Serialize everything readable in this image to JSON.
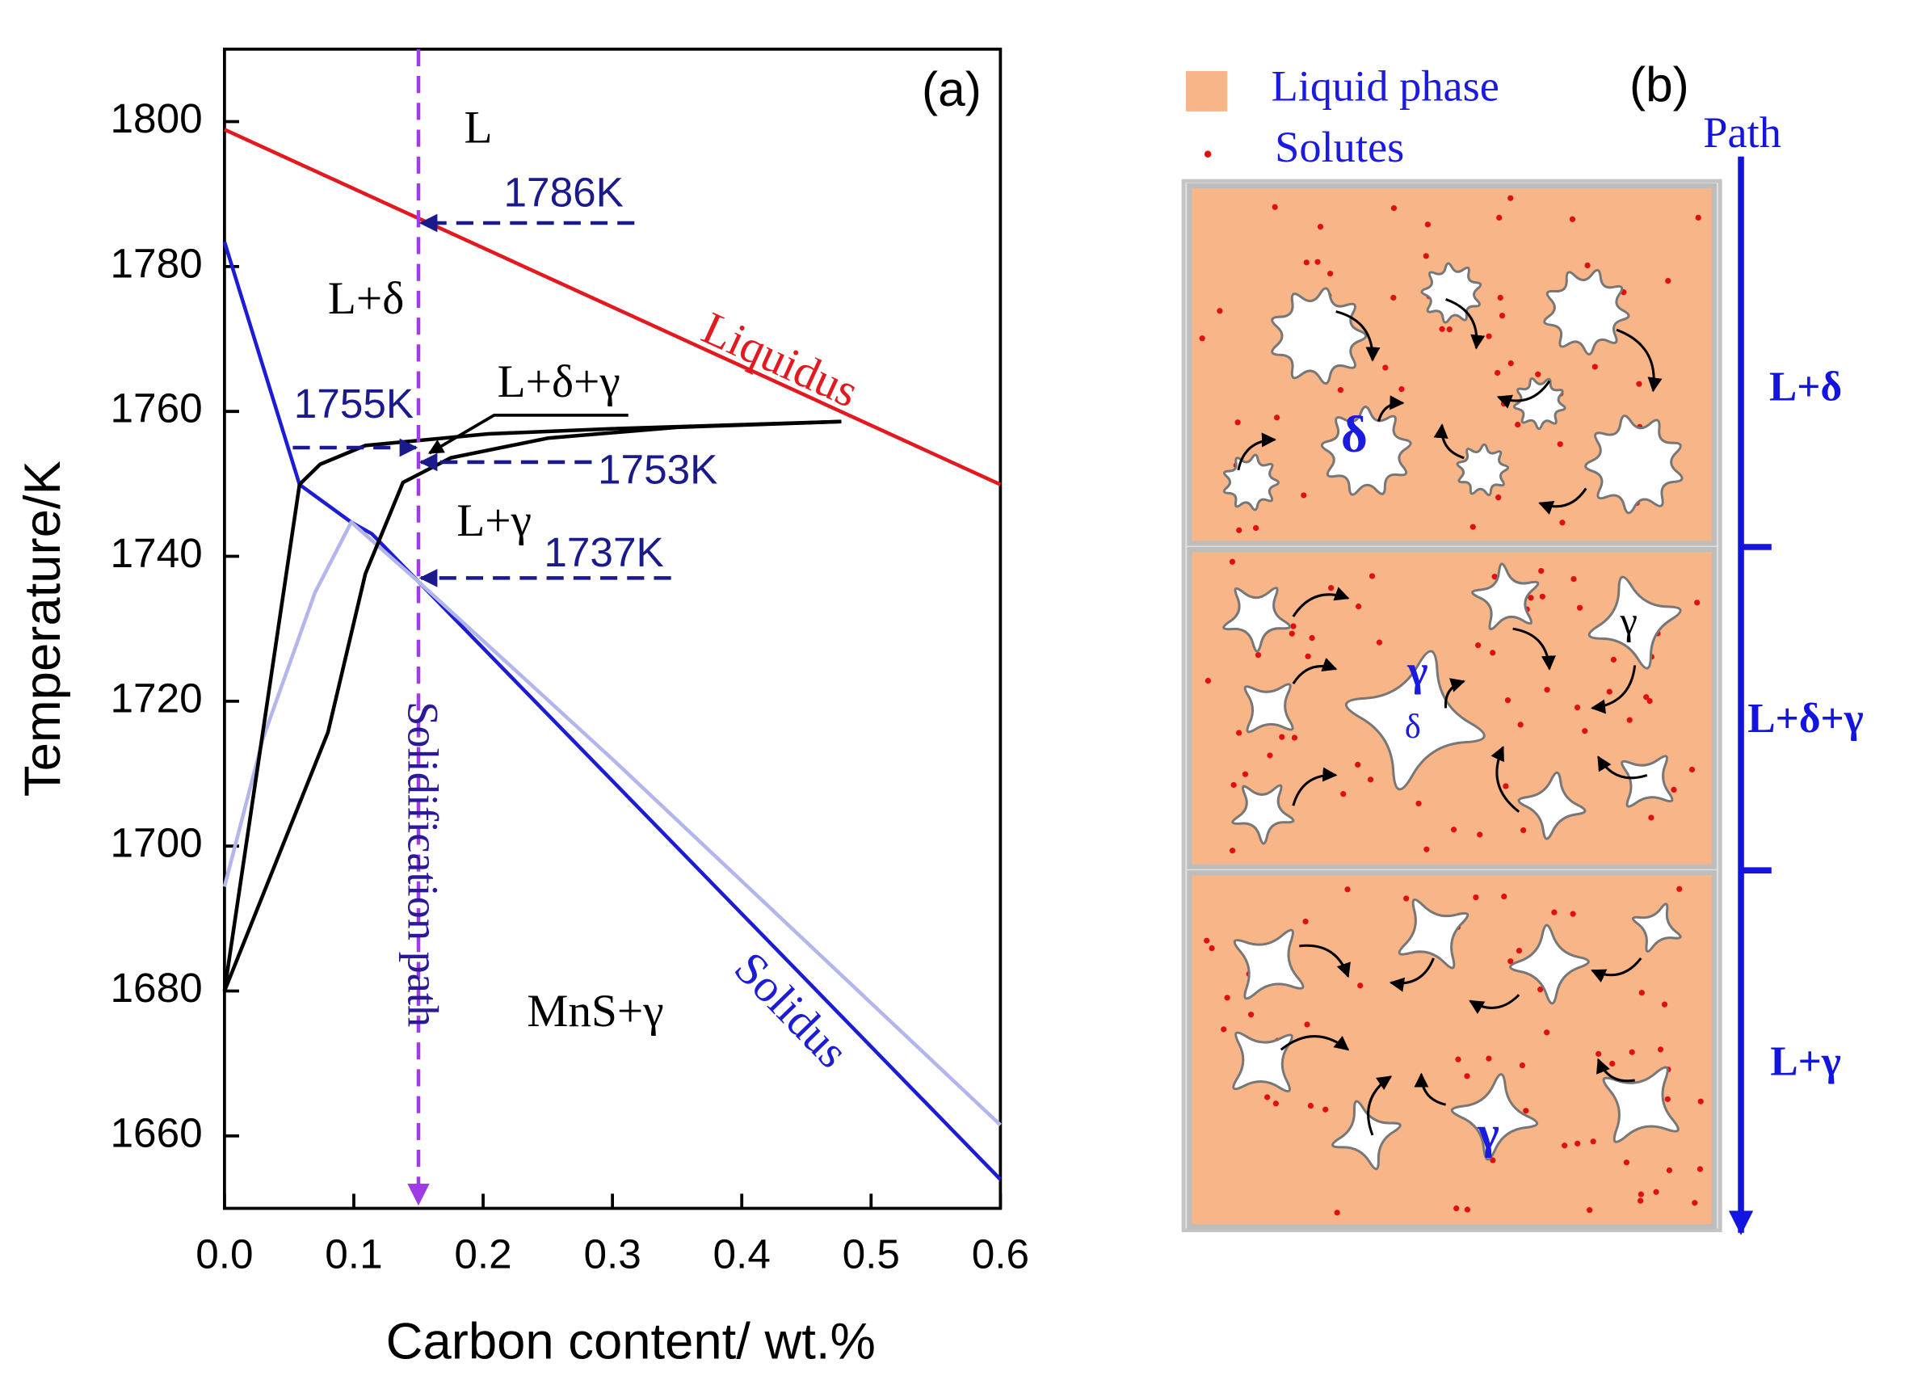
{
  "chart_data": {
    "type": "line",
    "panel_label": "(a)",
    "xlabel": "Carbon content/ wt.%",
    "ylabel": "Temperature/K",
    "xlim": [
      0,
      0.6
    ],
    "ylim": [
      1650,
      1810
    ],
    "xticks": [
      {
        "value": 0,
        "label": "0.0"
      },
      0.1,
      0.2,
      0.3,
      0.4,
      0.5,
      0.6
    ],
    "yticks": [
      1660,
      1680,
      1700,
      1720,
      1740,
      1760,
      1780,
      1800
    ],
    "series": [
      {
        "name": "Liquidus",
        "color": "#e3191f",
        "x": [
          0,
          0.6
        ],
        "values": [
          1798.9,
          1749.9
        ]
      },
      {
        "name": "Solidus",
        "color": "#1c1cd6",
        "x": [
          0,
          0.058,
          0.098,
          0.114,
          0.6
        ],
        "values": [
          1783.4,
          1749.9,
          1744.7,
          1743.1,
          1654.0
        ]
      },
      {
        "color": "#b3b6ec",
        "x": [
          0,
          0.03,
          0.07,
          0.098,
          0.15,
          0.3,
          0.6
        ],
        "values": [
          1694.4,
          1715,
          1735,
          1744.7,
          1736.5,
          1712,
          1661.5
        ]
      },
      {
        "color": "#000000",
        "x": [
          0,
          0.058,
          0.074,
          0.109,
          0.204,
          0.3,
          0.477
        ],
        "values": [
          1680,
          1749.9,
          1752.7,
          1755.3,
          1756.9,
          1757.6,
          1758.6
        ]
      },
      {
        "color": "#000000",
        "x": [
          0,
          0.08,
          0.109,
          0.138,
          0.175,
          0.25,
          0.35,
          0.477
        ],
        "values": [
          1680,
          1715.7,
          1737.6,
          1750.2,
          1753.6,
          1756.3,
          1757.8,
          1758.6
        ]
      }
    ],
    "annotations": [
      "L",
      "L+δ",
      "L+δ+γ",
      "L+γ",
      "MnS+γ"
    ],
    "markers": [
      {
        "label": "1786K",
        "value": 1786
      },
      {
        "label": "1755K",
        "value": 1755
      },
      {
        "label": "1753K",
        "value": 1753
      },
      {
        "label": "1737K",
        "value": 1737
      }
    ],
    "path": {
      "label": "Solidification path",
      "x": 0.15
    }
  },
  "schematic": {
    "label": "(b)",
    "legend": [
      "Liquid phase",
      "Solutes"
    ],
    "path_title": "Path",
    "stages": [
      "L+δ",
      "L+δ+γ",
      "L+γ"
    ],
    "phase_labels": [
      "δ",
      "γ",
      "δ",
      "γ",
      "γ"
    ]
  }
}
